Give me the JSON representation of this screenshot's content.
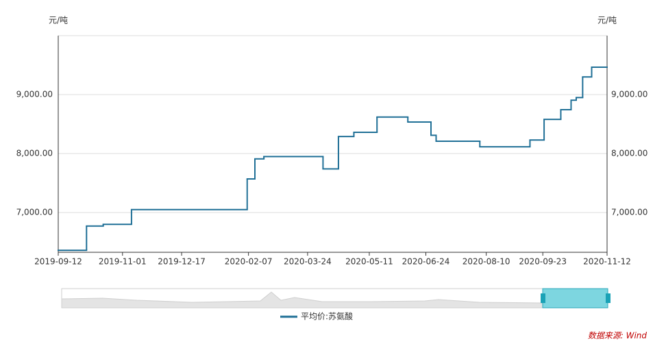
{
  "chart_data": {
    "type": "line",
    "y_label": "元/吨",
    "y2_label": "元/吨",
    "x": [
      "2019-09-12",
      "2019-10-04",
      "2019-10-17",
      "2019-11-08",
      "2020-02-06",
      "2020-02-12",
      "2020-02-19",
      "2020-04-05",
      "2020-04-17",
      "2020-04-29",
      "2020-05-17",
      "2020-06-10",
      "2020-06-28",
      "2020-07-02",
      "2020-08-05",
      "2020-09-13",
      "2020-09-24",
      "2020-10-07",
      "2020-10-15",
      "2020-10-19",
      "2020-10-24",
      "2020-10-31",
      "2020-11-12"
    ],
    "series": [
      {
        "name": "平均价:苏氨酸",
        "color": "#1f6f96",
        "values": [
          6360,
          6770,
          6800,
          7050,
          7570,
          7910,
          7950,
          7740,
          8290,
          8360,
          8620,
          8535,
          8310,
          8210,
          8115,
          8230,
          8580,
          8745,
          8905,
          8950,
          9300,
          9465,
          9465
        ]
      }
    ],
    "step": "after",
    "xlim": [
      "2019-09-12",
      "2020-11-12"
    ],
    "xticks": [
      "2019-09-12",
      "2019-11-01",
      "2019-12-17",
      "2020-02-07",
      "2020-03-24",
      "2020-05-11",
      "2020-06-24",
      "2020-08-10",
      "2020-09-23",
      "2020-11-12"
    ],
    "ylim": [
      6326,
      10000
    ],
    "yticks": [
      {
        "value": 7000,
        "label": "7,000.00"
      },
      {
        "value": 8000,
        "label": "8,000.00"
      },
      {
        "value": 9000,
        "label": "9,000.00"
      }
    ],
    "y2lim": [
      6326,
      10000
    ],
    "y2ticks": [
      {
        "value": 7000,
        "label": "7,000.00"
      },
      {
        "value": 8000,
        "label": "8,000.00"
      },
      {
        "value": 9000,
        "label": "9,000.00"
      }
    ],
    "grid": true,
    "legend": "bottom",
    "source": "数据来源: Wind"
  }
}
